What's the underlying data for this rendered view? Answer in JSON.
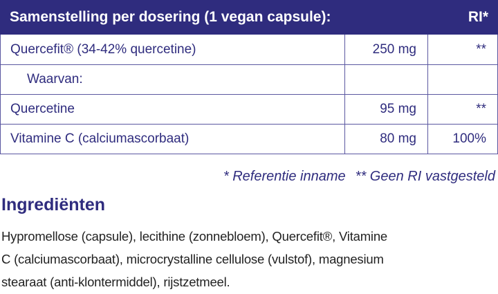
{
  "table": {
    "header": [
      "Samenstelling per dosering (1 vegan capsule):",
      "RI*"
    ],
    "rows": [
      [
        "Quercefit® (34-42% quercetine)",
        "250 mg",
        "**"
      ],
      [
        "Waarvan:",
        "",
        ""
      ],
      [
        "Quercetine",
        "95 mg",
        "**"
      ],
      [
        "Vitamine C (calciumascorbaat)",
        "80 mg",
        "100%"
      ]
    ]
  },
  "footnotes": [
    "* Referentie inname",
    "** Geen RI vastgesteld"
  ],
  "ingredients": {
    "title": "Ingrediënten",
    "lines": [
      "Hypromellose (capsule), lecithine (zonnebloem), Quercefit®, Vitamine",
      "C (calciumascorbaat), microcrystalline cellulose (vulstof), magnesium",
      "stearaat (anti-klontermiddel), rijstzetmeel."
    ]
  }
}
